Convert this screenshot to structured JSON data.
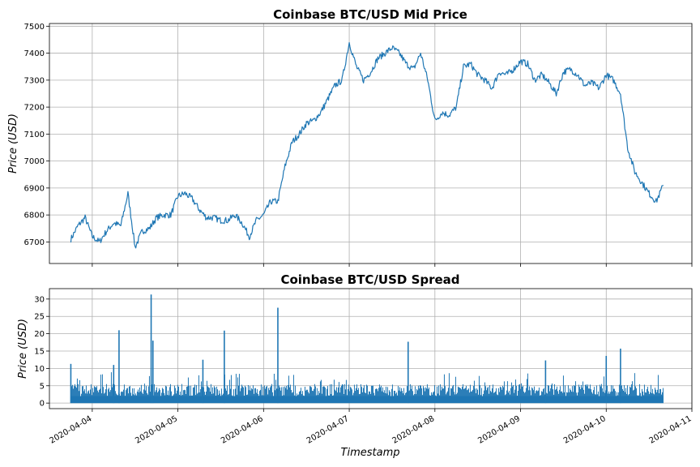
{
  "chart_data": [
    {
      "type": "line",
      "title": "Coinbase BTC/USD Mid Price",
      "ylabel": "Price (USD)",
      "xlabel": "",
      "x_range": [
        "2020-04-03T12:00",
        "2020-04-11T00:00"
      ],
      "ylim": [
        6620,
        7510
      ],
      "yticks": [
        6700,
        6800,
        6900,
        7000,
        7100,
        7200,
        7300,
        7400,
        7500
      ],
      "grid": true,
      "color": "#1f77b4",
      "series": [
        {
          "x": [
            "2020-04-03T18:00",
            "2020-04-03T20:00",
            "2020-04-03T22:00",
            "2020-04-04T00:00",
            "2020-04-04T02:00",
            "2020-04-04T04:00",
            "2020-04-04T06:00",
            "2020-04-04T08:00",
            "2020-04-04T10:00",
            "2020-04-04T12:00",
            "2020-04-04T14:00",
            "2020-04-04T16:00",
            "2020-04-04T18:00",
            "2020-04-04T20:00",
            "2020-04-04T22:00",
            "2020-04-05T00:00",
            "2020-04-05T02:00",
            "2020-04-05T04:00",
            "2020-04-05T06:00",
            "2020-04-05T08:00",
            "2020-04-05T10:00",
            "2020-04-05T12:00",
            "2020-04-05T14:00",
            "2020-04-05T16:00",
            "2020-04-05T18:00",
            "2020-04-05T20:00",
            "2020-04-05T22:00",
            "2020-04-06T00:00",
            "2020-04-06T02:00",
            "2020-04-06T04:00",
            "2020-04-06T06:00",
            "2020-04-06T08:00",
            "2020-04-06T10:00",
            "2020-04-06T12:00",
            "2020-04-06T14:00",
            "2020-04-06T16:00",
            "2020-04-06T18:00",
            "2020-04-06T20:00",
            "2020-04-06T22:00",
            "2020-04-07T00:00",
            "2020-04-07T02:00",
            "2020-04-07T04:00",
            "2020-04-07T06:00",
            "2020-04-07T08:00",
            "2020-04-07T10:00",
            "2020-04-07T12:00",
            "2020-04-07T14:00",
            "2020-04-07T16:00",
            "2020-04-07T18:00",
            "2020-04-07T20:00",
            "2020-04-07T22:00",
            "2020-04-08T00:00",
            "2020-04-08T02:00",
            "2020-04-08T04:00",
            "2020-04-08T06:00",
            "2020-04-08T08:00",
            "2020-04-08T10:00",
            "2020-04-08T12:00",
            "2020-04-08T14:00",
            "2020-04-08T16:00",
            "2020-04-08T18:00",
            "2020-04-08T20:00",
            "2020-04-08T22:00",
            "2020-04-09T00:00",
            "2020-04-09T02:00",
            "2020-04-09T04:00",
            "2020-04-09T06:00",
            "2020-04-09T08:00",
            "2020-04-09T10:00",
            "2020-04-09T12:00",
            "2020-04-09T14:00",
            "2020-04-09T16:00",
            "2020-04-09T18:00",
            "2020-04-09T20:00",
            "2020-04-09T22:00",
            "2020-04-10T00:00",
            "2020-04-10T02:00",
            "2020-04-10T04:00",
            "2020-04-10T06:00",
            "2020-04-10T08:00",
            "2020-04-10T10:00",
            "2020-04-10T12:00",
            "2020-04-10T14:00",
            "2020-04-10T16:00"
          ],
          "y": [
            6710,
            6760,
            6790,
            6720,
            6700,
            6740,
            6770,
            6760,
            6880,
            6680,
            6740,
            6750,
            6790,
            6800,
            6800,
            6870,
            6880,
            6860,
            6820,
            6790,
            6790,
            6780,
            6780,
            6800,
            6770,
            6720,
            6780,
            6800,
            6850,
            6850,
            6980,
            7070,
            7100,
            7140,
            7150,
            7180,
            7230,
            7280,
            7300,
            7440,
            7350,
            7300,
            7330,
            7380,
            7400,
            7420,
            7400,
            7360,
            7340,
            7400,
            7300,
            7150,
            7180,
            7170,
            7200,
            7350,
            7360,
            7320,
            7300,
            7270,
            7330,
            7320,
            7340,
            7370,
            7360,
            7300,
            7320,
            7290,
            7250,
            7330,
            7340,
            7320,
            7280,
            7290,
            7270,
            7320,
            7300,
            7250,
            7050,
            6960,
            6920,
            6880,
            6850,
            6910
          ]
        }
      ]
    },
    {
      "type": "bar",
      "title": "Coinbase BTC/USD Spread",
      "ylabel": "Price (USD)",
      "xlabel": "Timestamp",
      "x_range": [
        "2020-04-03T12:00",
        "2020-04-11T00:00"
      ],
      "ylim": [
        -1.6,
        33
      ],
      "yticks": [
        0,
        5,
        10,
        15,
        20,
        25,
        30
      ],
      "xtick_labels": [
        "2020-04-04",
        "2020-04-05",
        "2020-04-06",
        "2020-04-07",
        "2020-04-08",
        "2020-04-09",
        "2020-04-10",
        "2020-04-11"
      ],
      "grid": true,
      "color": "#1f77b4",
      "baseline": 2,
      "typical_max": 4,
      "spikes": [
        {
          "x": "2020-04-03T18:00",
          "value": 11.3
        },
        {
          "x": "2020-04-04T06:00",
          "value": 11.0
        },
        {
          "x": "2020-04-04T07:30",
          "value": 21.0
        },
        {
          "x": "2020-04-04T16:30",
          "value": 31.3
        },
        {
          "x": "2020-04-04T17:00",
          "value": 18.0
        },
        {
          "x": "2020-04-05T07:00",
          "value": 12.5
        },
        {
          "x": "2020-04-05T13:00",
          "value": 20.9
        },
        {
          "x": "2020-04-06T04:00",
          "value": 27.5
        },
        {
          "x": "2020-04-07T16:30",
          "value": 17.7
        },
        {
          "x": "2020-04-09T07:00",
          "value": 12.3
        },
        {
          "x": "2020-04-10T00:00",
          "value": 13.6
        },
        {
          "x": "2020-04-10T04:00",
          "value": 15.7
        }
      ]
    }
  ]
}
